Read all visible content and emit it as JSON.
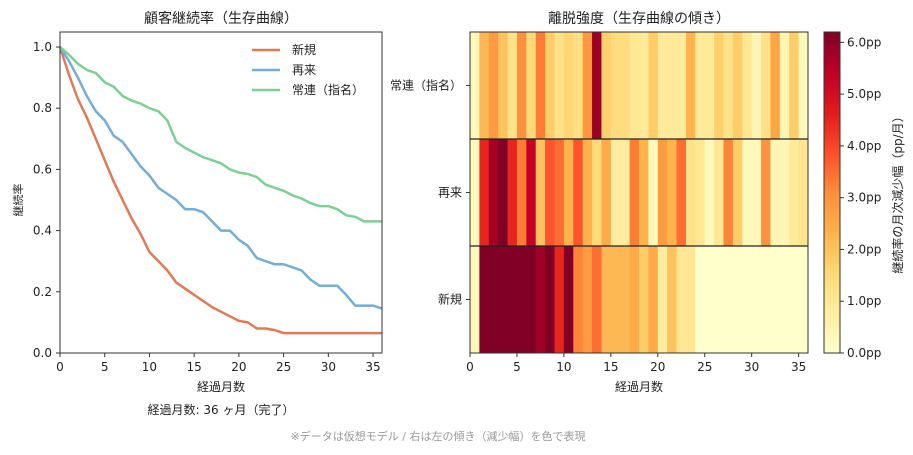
{
  "chart_data": [
    {
      "type": "line",
      "title": "顧客継続率（生存曲線）",
      "xlabel": "経過月数",
      "ylabel": "継続率",
      "xlim": [
        0,
        36
      ],
      "ylim": [
        0,
        1.05
      ],
      "xticks": [
        "0",
        "5",
        "10",
        "15",
        "20",
        "25",
        "30",
        "35"
      ],
      "yticks": [
        "0.0",
        "0.2",
        "0.4",
        "0.6",
        "0.8",
        "1.0"
      ],
      "legend_position": "top-right",
      "x": [
        0,
        1,
        2,
        3,
        4,
        5,
        6,
        7,
        8,
        9,
        10,
        11,
        12,
        13,
        14,
        15,
        16,
        17,
        18,
        19,
        20,
        21,
        22,
        23,
        24,
        25,
        26,
        27,
        28,
        29,
        30,
        31,
        32,
        33,
        34,
        35,
        36
      ],
      "series": [
        {
          "name": "新規",
          "color": "#e07a55",
          "values": [
            1.0,
            0.91,
            0.83,
            0.77,
            0.7,
            0.63,
            0.56,
            0.5,
            0.44,
            0.39,
            0.33,
            0.3,
            0.27,
            0.23,
            0.21,
            0.19,
            0.17,
            0.15,
            0.135,
            0.12,
            0.105,
            0.1,
            0.08,
            0.08,
            0.075,
            0.065,
            0.065,
            0.065,
            0.065,
            0.065,
            0.065,
            0.065,
            0.065,
            0.065,
            0.065,
            0.065,
            0.065
          ]
        },
        {
          "name": "再来",
          "color": "#72aed8",
          "values": [
            1.0,
            0.955,
            0.9,
            0.84,
            0.79,
            0.76,
            0.71,
            0.69,
            0.65,
            0.61,
            0.58,
            0.54,
            0.52,
            0.5,
            0.47,
            0.47,
            0.46,
            0.43,
            0.4,
            0.4,
            0.37,
            0.35,
            0.31,
            0.3,
            0.29,
            0.29,
            0.28,
            0.27,
            0.24,
            0.22,
            0.22,
            0.22,
            0.19,
            0.155,
            0.155,
            0.155,
            0.145
          ]
        },
        {
          "name": "常連（指名）",
          "color": "#7ccf95",
          "values": [
            1.0,
            0.975,
            0.945,
            0.925,
            0.915,
            0.885,
            0.87,
            0.84,
            0.825,
            0.815,
            0.8,
            0.79,
            0.76,
            0.69,
            0.67,
            0.655,
            0.64,
            0.63,
            0.62,
            0.6,
            0.59,
            0.585,
            0.575,
            0.55,
            0.54,
            0.53,
            0.515,
            0.505,
            0.49,
            0.48,
            0.48,
            0.47,
            0.45,
            0.445,
            0.43,
            0.43,
            0.43
          ]
        }
      ],
      "caption": "経過月数: 36 ヶ月（完了）"
    },
    {
      "type": "heatmap",
      "title": "離脱強度（生存曲線の傾き）",
      "xlabel": "経過月数",
      "xlim": [
        0,
        36
      ],
      "xticks": [
        "0",
        "5",
        "10",
        "15",
        "20",
        "25",
        "30",
        "35"
      ],
      "rows": [
        "常連（指名）",
        "再来",
        "新規"
      ],
      "colorbar_label": "継続率の月次減少幅（pp/月）",
      "colorbar_ticks": [
        "0.0pp",
        "1.0pp",
        "2.0pp",
        "3.0pp",
        "4.0pp",
        "5.0pp",
        "6.0pp"
      ],
      "vmin": 0,
      "vmax": 6.2,
      "colormap": "YlOrRd",
      "values": [
        [
          0.3,
          2.2,
          2.8,
          2.0,
          1.2,
          3.0,
          1.5,
          3.3,
          1.8,
          1.2,
          1.6,
          1.3,
          2.9,
          5.9,
          1.7,
          1.4,
          1.4,
          1.0,
          0.9,
          1.8,
          0.9,
          0.9,
          0.9,
          2.3,
          0.9,
          0.9,
          1.7,
          1.2,
          1.8,
          1.0,
          0.4,
          1.2,
          2.6,
          0.4,
          1.8,
          0.3
        ],
        [
          0.3,
          4.5,
          5.7,
          6.2,
          4.5,
          3.3,
          5.3,
          2.0,
          3.8,
          3.5,
          2.3,
          3.8,
          2.3,
          1.5,
          2.5,
          0.8,
          0.8,
          3.3,
          2.3,
          0.3,
          2.8,
          2.3,
          3.5,
          1.2,
          1.0,
          0.3,
          1.0,
          3.2,
          1.8,
          0.3,
          0.3,
          3.0,
          0.4,
          0.4,
          0.9,
          1.1
        ],
        [
          0.3,
          6.2,
          6.2,
          6.2,
          6.2,
          6.2,
          6.2,
          5.8,
          6.2,
          4.5,
          6.2,
          3.2,
          2.8,
          3.5,
          2.2,
          2.2,
          2.2,
          2.5,
          1.8,
          2.5,
          0.8,
          2.0,
          1.0,
          1.0,
          0,
          0,
          0,
          0,
          0,
          0,
          0,
          0,
          0,
          0,
          0,
          0
        ]
      ]
    }
  ],
  "footer_note": "※データは仮想モデル / 右は左の傾き（減少幅）を色で表現"
}
